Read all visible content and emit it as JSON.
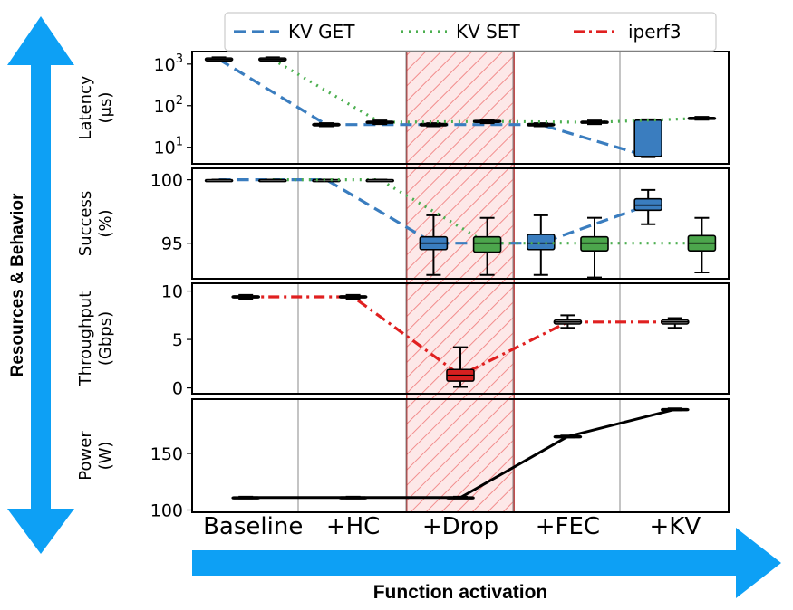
{
  "chart_data": {
    "type": "box",
    "categories": [
      "Baseline",
      "+HC",
      "+Drop",
      "+FEC",
      "+KV"
    ],
    "highlighted_category": "+Drop",
    "highlight_color": "#ff0000",
    "x_axis_arrow_label": "Function activation",
    "y_axis_arrow_label": "Resources & Behavior",
    "legend": [
      {
        "name": "KV GET",
        "color": "#3a7dbf",
        "style": "dashed"
      },
      {
        "name": "KV SET",
        "color": "#4caf50",
        "style": "dotted"
      },
      {
        "name": "iperf3",
        "color": "#e02020",
        "style": "dashdot"
      }
    ],
    "panels": [
      {
        "ylabel": [
          "Latency",
          "(μs)"
        ],
        "scale": "log",
        "ylim": [
          4,
          2000
        ],
        "yticks": [
          {
            "value": 1000,
            "base": "10",
            "exp": "3"
          },
          {
            "value": 100,
            "base": "10",
            "exp": "2"
          },
          {
            "value": 10,
            "base": "10",
            "exp": "1"
          }
        ],
        "series": [
          {
            "name": "KV GET",
            "median_line": [
              1300,
              35,
              35,
              35,
              6
            ],
            "boxes": [
              {
                "category": "Baseline",
                "med": 1300,
                "q1": 1200,
                "q3": 1400,
                "lo": 1150,
                "hi": 1450,
                "filled": false
              },
              {
                "category": "+HC",
                "med": 35,
                "q1": 33,
                "q3": 37,
                "lo": 32,
                "hi": 38,
                "filled": false
              },
              {
                "category": "+Drop",
                "med": 35,
                "q1": 33,
                "q3": 37,
                "lo": 32,
                "hi": 38,
                "filled": false
              },
              {
                "category": "+FEC",
                "med": 35,
                "q1": 33,
                "q3": 37,
                "lo": 32,
                "hi": 38,
                "filled": false
              },
              {
                "category": "+KV",
                "med": 6,
                "q1": 6,
                "q3": 45,
                "lo": 5.8,
                "hi": 47,
                "filled": true
              }
            ]
          },
          {
            "name": "KV SET",
            "median_line": [
              1300,
              40,
              42,
              40,
              50
            ],
            "boxes": [
              {
                "category": "Baseline",
                "med": 1300,
                "q1": 1200,
                "q3": 1400,
                "lo": 1150,
                "hi": 1450,
                "filled": false
              },
              {
                "category": "+HC",
                "med": 40,
                "q1": 38,
                "q3": 42,
                "lo": 36,
                "hi": 44,
                "filled": false
              },
              {
                "category": "+Drop",
                "med": 42,
                "q1": 40,
                "q3": 44,
                "lo": 38,
                "hi": 46,
                "filled": false
              },
              {
                "category": "+FEC",
                "med": 40,
                "q1": 38,
                "q3": 42,
                "lo": 36,
                "hi": 44,
                "filled": false
              },
              {
                "category": "+KV",
                "med": 50,
                "q1": 48,
                "q3": 52,
                "lo": 46,
                "hi": 54,
                "filled": false
              }
            ]
          }
        ]
      },
      {
        "ylabel": [
          "Success",
          "(%)"
        ],
        "scale": "linear",
        "ylim": [
          92.2,
          100.9
        ],
        "yticks": [
          {
            "value": 100,
            "label": "100"
          },
          {
            "value": 95,
            "label": "95"
          }
        ],
        "series": [
          {
            "name": "KV GET",
            "median_line": [
              100,
              100,
              95,
              95,
              98
            ],
            "boxes": [
              {
                "category": "Baseline",
                "med": 100,
                "q1": 100,
                "q3": 100,
                "lo": 100,
                "hi": 100,
                "filled": false
              },
              {
                "category": "+HC",
                "med": 100,
                "q1": 100,
                "q3": 100,
                "lo": 100,
                "hi": 100,
                "filled": false
              },
              {
                "category": "+Drop",
                "med": 95,
                "q1": 94.5,
                "q3": 95.5,
                "lo": 92.5,
                "hi": 97.2,
                "filled": true
              },
              {
                "category": "+FEC",
                "med": 95,
                "q1": 94.5,
                "q3": 95.7,
                "lo": 92.5,
                "hi": 97.2,
                "filled": true
              },
              {
                "category": "+KV",
                "med": 98,
                "q1": 97.6,
                "q3": 98.5,
                "lo": 96.5,
                "hi": 99.2,
                "filled": true
              }
            ]
          },
          {
            "name": "KV SET",
            "median_line": [
              100,
              100,
              95,
              95,
              95
            ],
            "boxes": [
              {
                "category": "Baseline",
                "med": 100,
                "q1": 100,
                "q3": 100,
                "lo": 100,
                "hi": 100,
                "filled": false
              },
              {
                "category": "+HC",
                "med": 100,
                "q1": 100,
                "q3": 100,
                "lo": 100,
                "hi": 100,
                "filled": false
              },
              {
                "category": "+Drop",
                "med": 95,
                "q1": 94.3,
                "q3": 95.5,
                "lo": 92.5,
                "hi": 97.0,
                "filled": true
              },
              {
                "category": "+FEC",
                "med": 95,
                "q1": 94.4,
                "q3": 95.5,
                "lo": 92.3,
                "hi": 97.0,
                "filled": true
              },
              {
                "category": "+KV",
                "med": 95,
                "q1": 94.4,
                "q3": 95.6,
                "lo": 92.7,
                "hi": 97.0,
                "filled": true
              }
            ]
          }
        ]
      },
      {
        "ylabel": [
          "Throughput",
          "(Gbps)"
        ],
        "scale": "linear",
        "ylim": [
          -0.6,
          10.8
        ],
        "yticks": [
          {
            "value": 10,
            "label": "10"
          },
          {
            "value": 5,
            "label": "5"
          },
          {
            "value": 0,
            "label": "0"
          }
        ],
        "series": [
          {
            "name": "iperf3",
            "median_line": [
              9.4,
              9.4,
              1.3,
              6.8,
              6.8
            ],
            "boxes": [
              {
                "category": "Baseline",
                "med": 9.4,
                "q1": 9.3,
                "q3": 9.5,
                "lo": 9.2,
                "hi": 9.6,
                "filled": false
              },
              {
                "category": "+HC",
                "med": 9.4,
                "q1": 9.3,
                "q3": 9.5,
                "lo": 9.2,
                "hi": 9.6,
                "filled": false
              },
              {
                "category": "+Drop",
                "med": 1.3,
                "q1": 0.7,
                "q3": 1.9,
                "lo": 0.1,
                "hi": 4.2,
                "filled": true
              },
              {
                "category": "+FEC",
                "med": 6.8,
                "q1": 6.6,
                "q3": 7.0,
                "lo": 6.2,
                "hi": 7.5,
                "filled": false
              },
              {
                "category": "+KV",
                "med": 6.8,
                "q1": 6.6,
                "q3": 7.0,
                "lo": 6.2,
                "hi": 7.2,
                "filled": false
              }
            ]
          }
        ]
      },
      {
        "ylabel": [
          "Power",
          "(W)"
        ],
        "scale": "linear",
        "ylim": [
          98,
          198
        ],
        "yticks": [
          {
            "value": 150,
            "label": "150"
          },
          {
            "value": 100,
            "label": "100"
          }
        ],
        "series": [
          {
            "name": "Power",
            "color": "#000000",
            "line": [
              111,
              111,
              111,
              165,
              189
            ],
            "boxes": [
              {
                "category": "Baseline",
                "med": 111,
                "q1": 110.5,
                "q3": 111.5,
                "lo": 110.3,
                "hi": 111.7,
                "filled": false
              },
              {
                "category": "+HC",
                "med": 111,
                "q1": 110.5,
                "q3": 111.5,
                "lo": 110.3,
                "hi": 111.7,
                "filled": false
              },
              {
                "category": "+Drop",
                "med": 111,
                "q1": 110.5,
                "q3": 111.5,
                "lo": 110.3,
                "hi": 111.7,
                "filled": false
              },
              {
                "category": "+FEC",
                "med": 165,
                "q1": 164.5,
                "q3": 165.5,
                "lo": 164.2,
                "hi": 165.8,
                "filled": false
              },
              {
                "category": "+KV",
                "med": 189,
                "q1": 188.5,
                "q3": 189.5,
                "lo": 188.2,
                "hi": 189.8,
                "filled": false
              }
            ]
          }
        ]
      }
    ]
  }
}
